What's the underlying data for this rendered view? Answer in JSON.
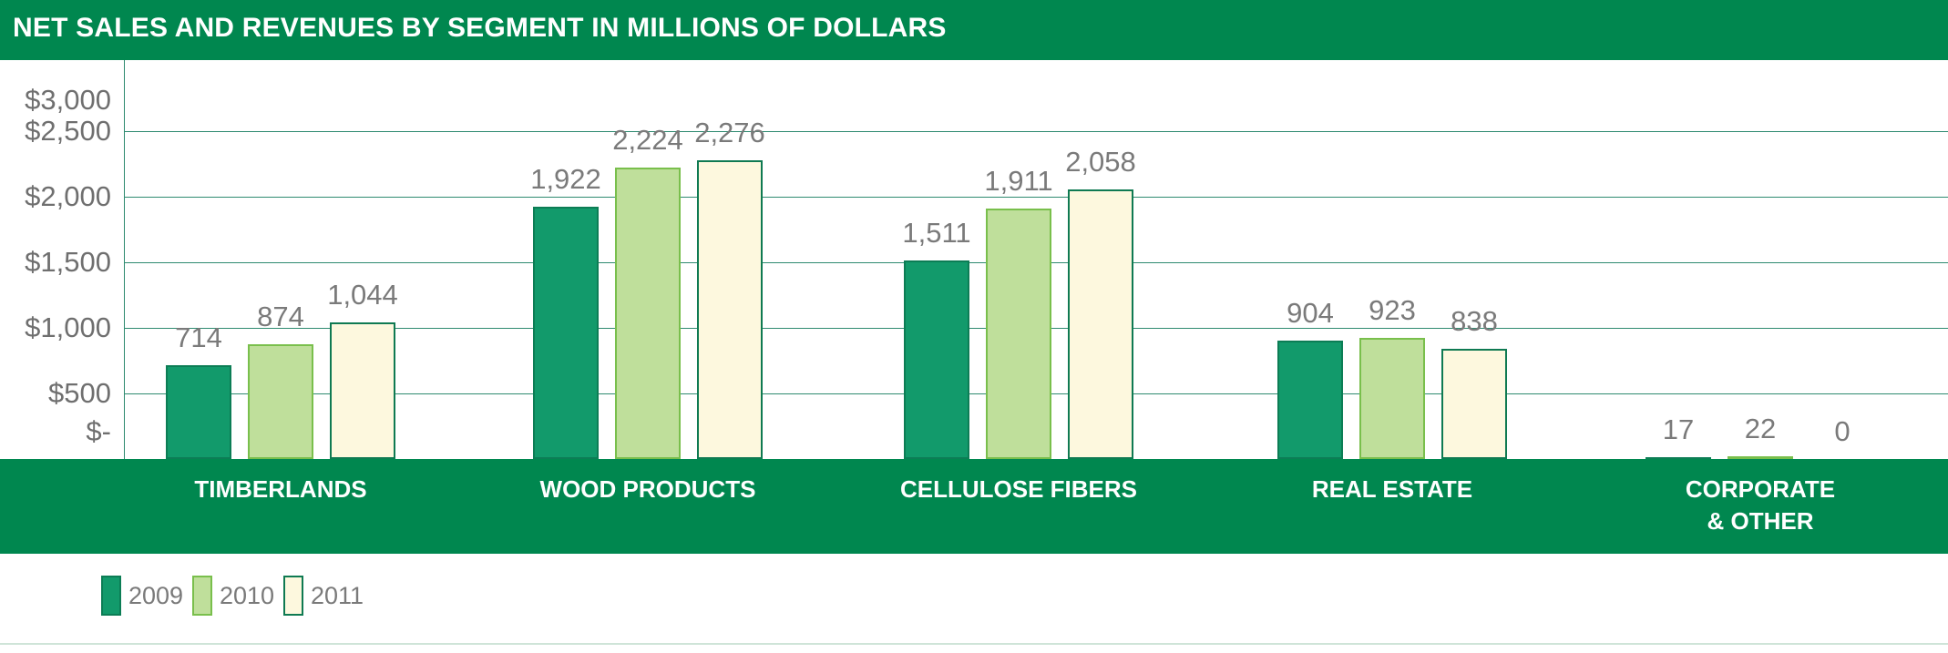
{
  "chart_data": {
    "type": "bar",
    "title": "NET SALES AND REVENUES BY SEGMENT IN MILLIONS OF DOLLARS",
    "categories": [
      "TIMBERLANDS",
      "WOOD PRODUCTS",
      "CELLULOSE FIBERS",
      "REAL ESTATE",
      "CORPORATE\n& OTHER"
    ],
    "series": [
      {
        "name": "2009",
        "values": [
          714,
          1922,
          1511,
          904,
          17
        ],
        "labels": [
          "714",
          "1,922",
          "1,511",
          "904",
          "17"
        ],
        "fill": "#129a6b",
        "stroke": "#0c7d55"
      },
      {
        "name": "2010",
        "values": [
          874,
          2224,
          1911,
          923,
          22
        ],
        "labels": [
          "874",
          "2,224",
          "1,911",
          "923",
          "22"
        ],
        "fill": "#bfdf9b",
        "stroke": "#79bf4c"
      },
      {
        "name": "2011",
        "values": [
          1044,
          2276,
          2058,
          838,
          0
        ],
        "labels": [
          "1,044",
          "2,276",
          "2,058",
          "838",
          "0"
        ],
        "fill": "#fdf8de",
        "stroke": "#0f7a52"
      }
    ],
    "yticks": [
      {
        "value": 0,
        "label": "$-"
      },
      {
        "value": 500,
        "label": "$500"
      },
      {
        "value": 1000,
        "label": "$1,000"
      },
      {
        "value": 1500,
        "label": "$1,500"
      },
      {
        "value": 2000,
        "label": "$2,000"
      },
      {
        "value": 2500,
        "label": "$2,500"
      },
      {
        "value": 3000,
        "label": "$3,000"
      }
    ],
    "ylim": [
      0,
      3000
    ],
    "grid": true,
    "legend": "bottom-left"
  },
  "colors": {
    "header_green": "#00874f",
    "gridline": "#2e8a70"
  }
}
